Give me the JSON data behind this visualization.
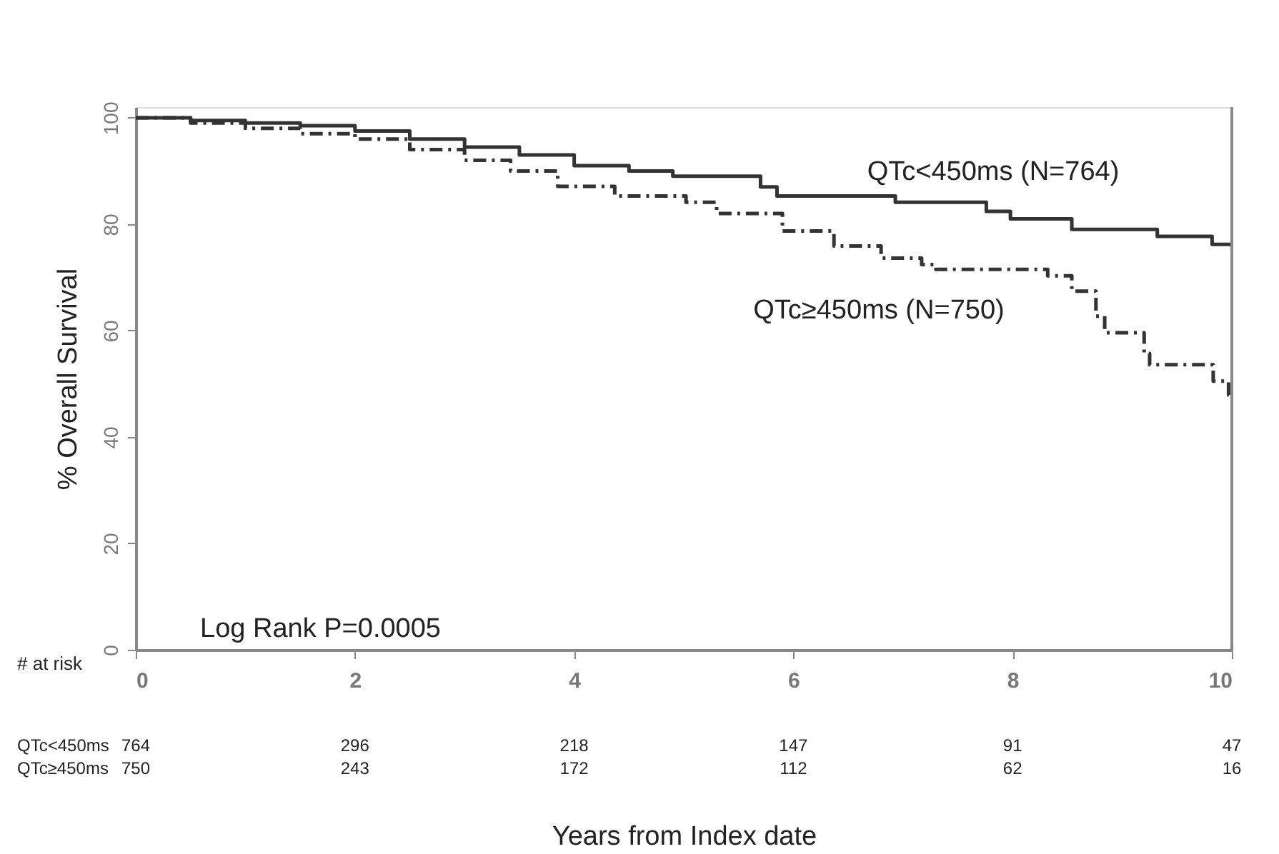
{
  "chart_data": {
    "type": "step",
    "xlabel": "Years from Index date",
    "ylabel": "% Overall Survival",
    "xlim": [
      0,
      10
    ],
    "xticks": [
      0,
      2,
      4,
      6,
      8,
      10
    ],
    "ylim": [
      0,
      102
    ],
    "yticks": [
      0,
      20,
      40,
      60,
      80,
      100
    ],
    "grid": false,
    "series": [
      {
        "name": "QTc<450ms (N=764)",
        "color": "#333333",
        "line_style": "solid",
        "x": [
          0,
          0.5,
          1,
          1.5,
          2,
          2.5,
          3,
          3.5,
          4,
          4.5,
          4.9,
          5.7,
          5.85,
          6.93,
          7.76,
          7.98,
          8.54,
          9.32,
          9.82,
          10
        ],
        "values": [
          100,
          99.5,
          99,
          98.5,
          97.5,
          96,
          94.5,
          93,
          91,
          90,
          89,
          87,
          85.3,
          84.1,
          82.4,
          81,
          79,
          77.7,
          76.2,
          76.2
        ]
      },
      {
        "name": "QTc≥450ms (N=750)",
        "color": "#333333",
        "line_style": "dashed",
        "x": [
          0,
          0.5,
          1,
          1.5,
          2,
          2.5,
          3,
          3.42,
          3.85,
          4.37,
          5.02,
          5.3,
          5.9,
          6.37,
          6.8,
          7.17,
          7.3,
          8.32,
          8.54,
          8.76,
          8.84,
          9.2,
          9.25,
          9.83,
          9.97,
          10
        ],
        "values": [
          100,
          99,
          98,
          97,
          96,
          94,
          92,
          90,
          87.1,
          85.3,
          84.1,
          82,
          78.7,
          75.9,
          73.6,
          72.4,
          71.5,
          70.3,
          67.4,
          62.7,
          59.6,
          55.7,
          53.6,
          50.5,
          47.9,
          47.9
        ]
      }
    ],
    "annotations": [
      "Log Rank P=0.0005",
      "# at risk",
      "QTc<450ms",
      "764",
      "296",
      "218",
      "147",
      "91",
      "47",
      "QTc≥450ms",
      "750",
      "243",
      "172",
      "112",
      "62",
      "16"
    ]
  }
}
